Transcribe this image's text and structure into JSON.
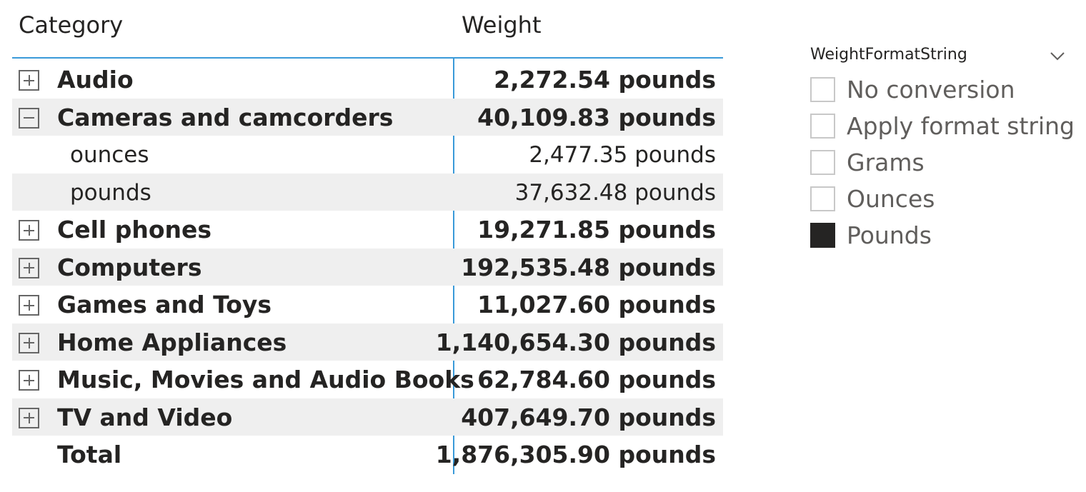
{
  "matrix": {
    "header": {
      "category": "Category",
      "value": "Weight"
    },
    "rows": [
      {
        "label": "Audio",
        "value": "2,272.54 pounds"
      },
      {
        "label": "Cameras and camcorders",
        "value": "40,109.83 pounds"
      },
      {
        "label": "ounces",
        "value": "2,477.35 pounds"
      },
      {
        "label": "pounds",
        "value": "37,632.48 pounds"
      },
      {
        "label": "Cell phones",
        "value": "19,271.85 pounds"
      },
      {
        "label": "Computers",
        "value": "192,535.48 pounds"
      },
      {
        "label": "Games and Toys",
        "value": "11,027.60 pounds"
      },
      {
        "label": "Home Appliances",
        "value": "1,140,654.30 pounds"
      },
      {
        "label": "Music, Movies and Audio Books",
        "value": "62,784.60 pounds"
      },
      {
        "label": "TV and Video",
        "value": "407,649.70 pounds"
      },
      {
        "label": "Total",
        "value": "1,876,305.90 pounds"
      }
    ]
  },
  "slicer": {
    "title": "WeightFormatString",
    "options": [
      {
        "label": "No conversion",
        "checked": false
      },
      {
        "label": "Apply format string",
        "checked": false
      },
      {
        "label": "Grams",
        "checked": false
      },
      {
        "label": "Ounces",
        "checked": false
      },
      {
        "label": "Pounds",
        "checked": true
      }
    ]
  },
  "colors": {
    "accent": "#3a9ad9",
    "row_shade": "#efefef",
    "text": "#252423"
  }
}
